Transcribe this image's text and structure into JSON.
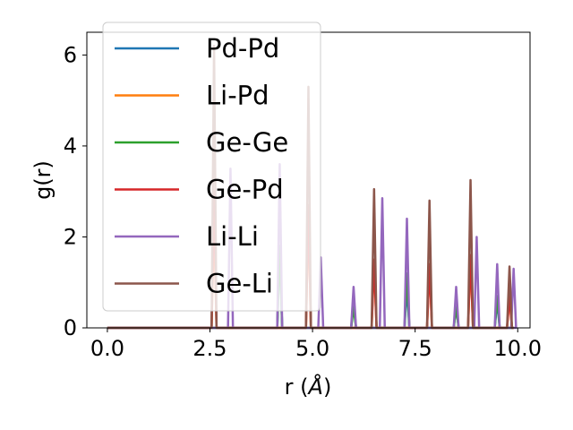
{
  "chart_data": {
    "type": "line",
    "xlabel": "r (Å)",
    "xlabel_main": "r (",
    "xlabel_unit": "Å",
    "xlabel_close": ")",
    "ylabel": "g(r)",
    "xlim": [
      -0.5,
      10.3
    ],
    "ylim": [
      0,
      6.5
    ],
    "xticks": [
      0.0,
      2.5,
      5.0,
      7.5,
      10.0
    ],
    "xtick_labels": [
      "0.0",
      "2.5",
      "5.0",
      "7.5",
      "10.0"
    ],
    "yticks": [
      0,
      2,
      4,
      6
    ],
    "ytick_labels": [
      "0",
      "2",
      "4",
      "6"
    ],
    "grid": false,
    "legend_position": "top-left",
    "peak_half_width": 0.06,
    "series": [
      {
        "name": "Pd-Pd",
        "color": "#1f77b4",
        "peaks": [
          [
            4.2,
            1.8
          ],
          [
            6.0,
            0.6
          ],
          [
            7.3,
            0.9
          ],
          [
            8.5,
            0.5
          ],
          [
            9.5,
            0.6
          ]
        ]
      },
      {
        "name": "Li-Pd",
        "color": "#ff7f0e",
        "peaks": [
          [
            2.6,
            2.5
          ],
          [
            4.9,
            2.6
          ],
          [
            6.5,
            1.5
          ],
          [
            7.85,
            1.4
          ],
          [
            8.85,
            1.6
          ],
          [
            9.8,
            0.7
          ]
        ]
      },
      {
        "name": "Ge-Ge",
        "color": "#2ca02c",
        "peaks": [
          [
            4.2,
            1.8
          ],
          [
            6.0,
            0.45
          ],
          [
            7.3,
            1.2
          ],
          [
            8.5,
            0.45
          ],
          [
            9.5,
            0.7
          ]
        ]
      },
      {
        "name": "Ge-Pd",
        "color": "#d62728",
        "peaks": [
          [
            2.6,
            3.0
          ],
          [
            4.9,
            2.7
          ],
          [
            6.5,
            1.5
          ],
          [
            7.85,
            1.4
          ],
          [
            8.85,
            1.6
          ],
          [
            9.8,
            0.7
          ]
        ]
      },
      {
        "name": "Li-Li",
        "color": "#9467bd",
        "peaks": [
          [
            3.0,
            3.5
          ],
          [
            4.2,
            3.6
          ],
          [
            5.2,
            1.55
          ],
          [
            6.0,
            0.9
          ],
          [
            6.7,
            2.85
          ],
          [
            7.3,
            2.4
          ],
          [
            8.5,
            0.9
          ],
          [
            9.0,
            2.0
          ],
          [
            9.5,
            1.4
          ],
          [
            9.9,
            1.3
          ]
        ]
      },
      {
        "name": "Ge-Li",
        "color": "#8c564b",
        "peaks": [
          [
            2.6,
            6.2
          ],
          [
            4.9,
            5.3
          ],
          [
            6.5,
            3.05
          ],
          [
            7.85,
            2.8
          ],
          [
            8.85,
            3.25
          ],
          [
            9.8,
            1.35
          ]
        ]
      }
    ]
  }
}
